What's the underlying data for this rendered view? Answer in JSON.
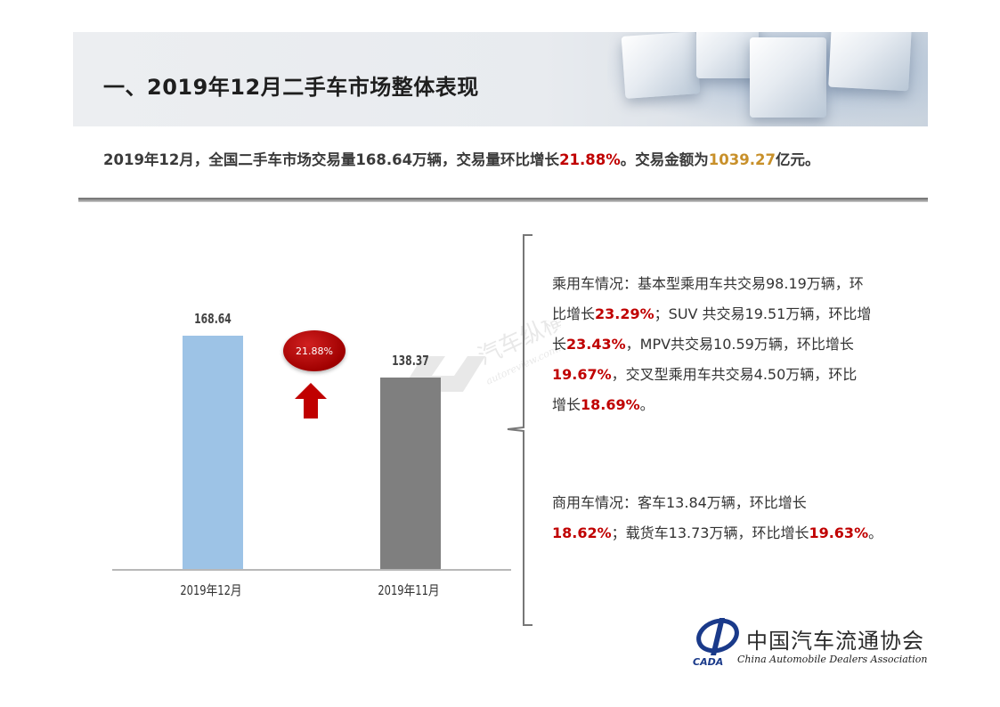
{
  "title": "一、2019年12月二手车市场整体表现",
  "summary": {
    "prefix": "2019年12月，全国二手车市场交易量168.64万辆，交易量环比增长",
    "growth": "21.88%",
    "middle": "。交易金额为",
    "amount": "1039.27",
    "suffix": "亿元。"
  },
  "chart_data": {
    "type": "bar",
    "categories": [
      "2019年12月",
      "2019年11月"
    ],
    "values": [
      168.64,
      138.37
    ],
    "value_labels": [
      "168.64",
      "138.37"
    ],
    "bar_colors": [
      "#9dc3e6",
      "#7f7f7f"
    ],
    "growth_label": "21.88%",
    "ylim": [
      0,
      180
    ]
  },
  "passenger": {
    "lines": [
      [
        {
          "t": "乘用车情况：基本型乘用车共交易98.19万辆，环",
          "c": ""
        }
      ],
      [
        {
          "t": "比增长",
          "c": ""
        },
        {
          "t": "23.29%",
          "c": "red"
        },
        {
          "t": "；SUV 共交易19.51万辆，环比增",
          "c": ""
        }
      ],
      [
        {
          "t": "长",
          "c": ""
        },
        {
          "t": "23.43%",
          "c": "red"
        },
        {
          "t": "，MPV共交易10.59万辆，环比增长",
          "c": ""
        }
      ],
      [
        {
          "t": "19.67%",
          "c": "red"
        },
        {
          "t": "，交叉型乘用车共交易4.50万辆，环比",
          "c": ""
        }
      ],
      [
        {
          "t": "增长",
          "c": ""
        },
        {
          "t": "18.69%",
          "c": "red"
        },
        {
          "t": "。",
          "c": ""
        }
      ]
    ]
  },
  "commercial": {
    "lines": [
      [
        {
          "t": "商用车情况：客车13.84万辆，环比增长",
          "c": ""
        }
      ],
      [
        {
          "t": "18.62%",
          "c": "red"
        },
        {
          "t": "；载货车13.73万辆，环比增长",
          "c": ""
        },
        {
          "t": "19.63%",
          "c": "red"
        },
        {
          "t": "。",
          "c": ""
        }
      ]
    ]
  },
  "watermark": {
    "cn": "汽车纵横网",
    "en": "autoreview.com.cn"
  },
  "logo": {
    "cn": "中国汽车流通协会",
    "en": "China Automobile Dealers Association",
    "abbr": "CADA"
  },
  "colors": {
    "accent_red": "#c00000",
    "gold": "#c8902a",
    "bar_blue": "#9dc3e6",
    "bar_gray": "#7f7f7f"
  }
}
